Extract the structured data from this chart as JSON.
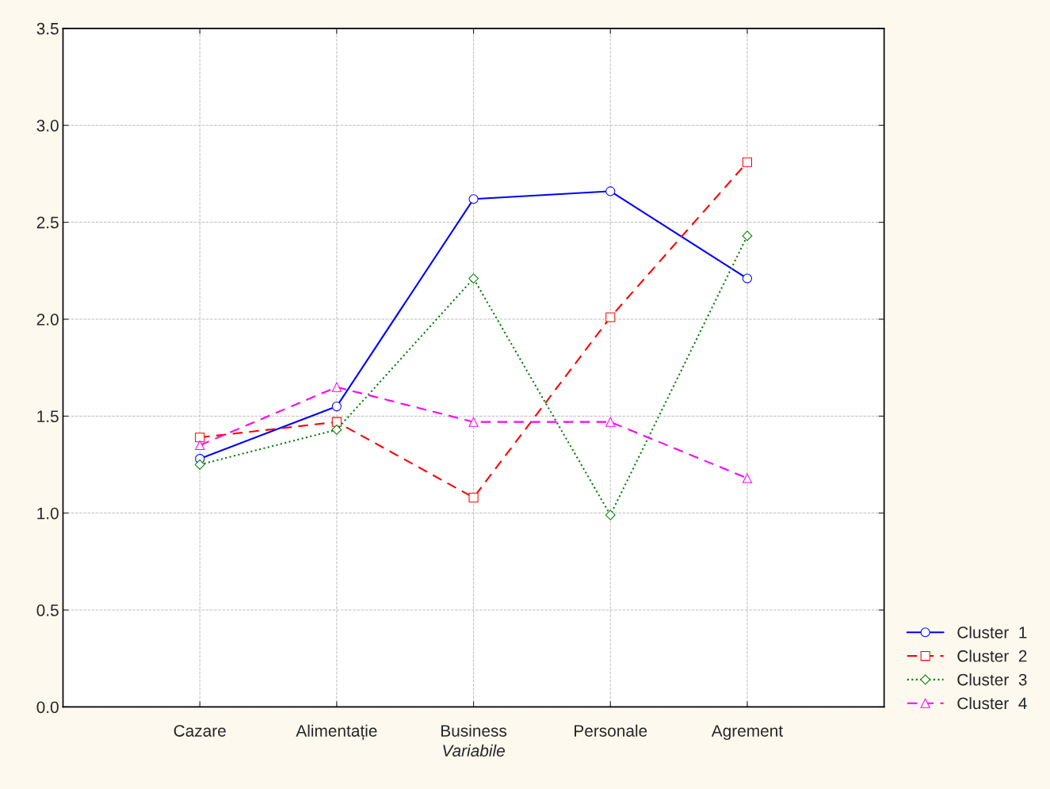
{
  "chart_data": {
    "type": "line",
    "xlabel": "Variabile",
    "categories": [
      "Cazare",
      "Alimentație",
      "Business",
      "Personale",
      "Agrement"
    ],
    "series": [
      {
        "name": "Cluster  1",
        "color": "#0000ff",
        "values": [
          1.28,
          1.55,
          2.62,
          2.66,
          2.21
        ],
        "marker": "circle",
        "line_style": "solid"
      },
      {
        "name": "Cluster  2",
        "color": "#ff0000",
        "values": [
          1.39,
          1.47,
          1.08,
          2.01,
          2.81
        ],
        "marker": "square",
        "line_style": "dashed"
      },
      {
        "name": "Cluster  3",
        "color": "#008000",
        "values": [
          1.25,
          1.43,
          2.21,
          0.99,
          2.43
        ],
        "marker": "diamond",
        "line_style": "dotted"
      },
      {
        "name": "Cluster  4",
        "color": "#ff00ff",
        "values": [
          1.35,
          1.65,
          1.47,
          1.47,
          1.18
        ],
        "marker": "triangle",
        "line_style": "dashed"
      }
    ],
    "ylim": [
      0,
      3.5
    ],
    "yticks": [
      {
        "value": 0,
        "label": "0.0"
      },
      {
        "value": 0.5,
        "label": "0.5"
      },
      {
        "value": 1,
        "label": "1.0"
      },
      {
        "value": 1.5,
        "label": "1.5"
      },
      {
        "value": 2,
        "label": "2.0"
      },
      {
        "value": 2.5,
        "label": "2.5"
      },
      {
        "value": 3,
        "label": "3.0"
      },
      {
        "value": 3.5,
        "label": "3.5"
      }
    ],
    "grid": true,
    "legend": "bottom right"
  }
}
